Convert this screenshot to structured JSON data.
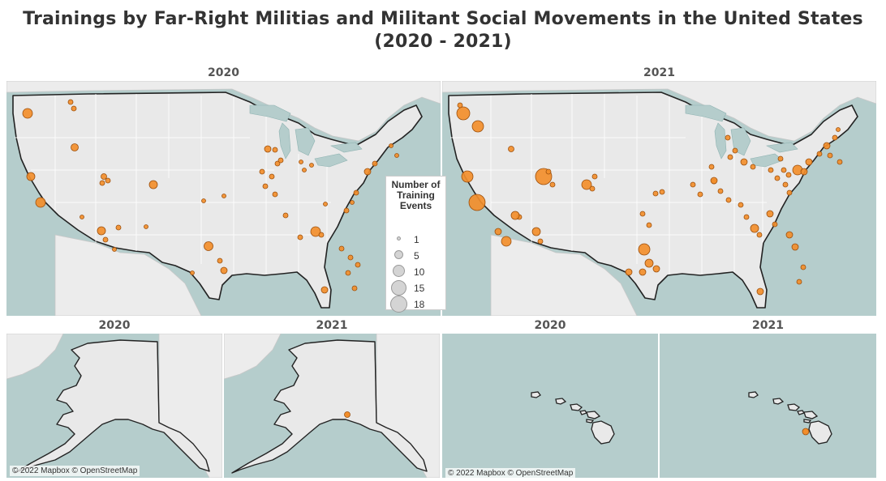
{
  "title_line1": "Trainings by Far-Right Militias and Militant Social Movements in the United States",
  "title_line2": "(2020 - 2021)",
  "panels": {
    "conus_2020": "2020",
    "conus_2021": "2021",
    "alaska_2020": "2020",
    "alaska_2021": "2021",
    "hawaii_2020": "2020",
    "hawaii_2021": "2021"
  },
  "legend": {
    "title": "Number of Training Events",
    "items": [
      {
        "label": "1",
        "value": 1
      },
      {
        "label": "5",
        "value": 5
      },
      {
        "label": "10",
        "value": 10
      },
      {
        "label": "15",
        "value": 15
      },
      {
        "label": "18",
        "value": 18
      }
    ]
  },
  "attribution": "© 2022 Mapbox © OpenStreetMap",
  "colors": {
    "water": "#b5cdcc",
    "land": "#e9e9e9",
    "marker": "#f28e2b",
    "marker_stroke": "#9c4f0c",
    "border": "#222222"
  }
}
